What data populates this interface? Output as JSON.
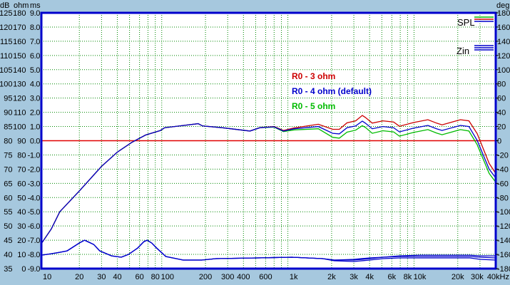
{
  "chart_data": {
    "type": "line",
    "xscale": "log",
    "xlim": [
      10,
      40000
    ],
    "xlabel_unit": "kHz",
    "x_ticks": [
      "10",
      "20",
      "30",
      "40",
      "60",
      "80",
      "100",
      "200",
      "300",
      "400",
      "600",
      "1k",
      "2k",
      "3k",
      "4k",
      "6k",
      "8k",
      "10k",
      "20k",
      "30k",
      "40kHz"
    ],
    "x_tick_values": [
      10,
      20,
      30,
      40,
      60,
      80,
      100,
      200,
      300,
      400,
      600,
      1000,
      2000,
      3000,
      4000,
      6000,
      8000,
      10000,
      20000,
      30000,
      40000
    ],
    "grid": true,
    "y_axes": {
      "db": {
        "unit": "dB",
        "range": [
          35,
          125
        ],
        "ticks": [
          "125",
          "120",
          "115",
          "110",
          "105",
          "100",
          "95",
          "90",
          "85",
          "80",
          "75",
          "70",
          "65",
          "60",
          "55",
          "50",
          "45",
          "40",
          "35"
        ]
      },
      "ohm": {
        "unit": "ohm",
        "range": [
          0,
          180
        ],
        "ticks": [
          "180",
          "170",
          "160",
          "150",
          "140",
          "130",
          "120",
          "110",
          "100",
          "90",
          "80",
          "70",
          "60",
          "50",
          "40",
          "30",
          "20",
          "10",
          "0"
        ]
      },
      "ms": {
        "unit": "ms",
        "range": [
          -9,
          9
        ],
        "ticks": [
          "9.0",
          "8.0",
          "7.0",
          "6.0",
          "5.0",
          "4.0",
          "3.0",
          "2.0",
          "1.0",
          "0.0",
          "-1.0",
          "-2.0",
          "-3.0",
          "-4.0",
          "-5.0",
          "-6.0",
          "-7.0",
          "-8.0",
          "-9.0"
        ]
      },
      "deg": {
        "unit": "deg",
        "range": [
          -180,
          180
        ],
        "ticks": [
          "180",
          "160",
          "140",
          "120",
          "100",
          "80",
          "60",
          "40",
          "20",
          "0",
          "-20",
          "-40",
          "-60",
          "-80",
          "-100",
          "-120",
          "-140",
          "-160",
          "-180"
        ]
      }
    },
    "reference_line": {
      "axis": "dB",
      "value": 80,
      "color": "#e00000"
    },
    "legend": {
      "placement": "top-right",
      "entries": [
        "SPL",
        "Zin"
      ]
    },
    "annotations": [
      {
        "text": "R0 - 3 ohm",
        "color": "#cc0000"
      },
      {
        "text": "R0 - 4 ohm (default)",
        "color": "#0000cc"
      },
      {
        "text": "R0 - 5 ohm",
        "color": "#00bb00"
      }
    ],
    "spl_x": [
      10,
      12,
      14,
      20,
      30,
      40,
      52,
      67,
      88,
      95,
      135,
      175,
      190,
      270,
      450,
      540,
      700,
      830,
      1010,
      1570,
      2040,
      2300,
      2650,
      3100,
      3500,
      3700,
      4200,
      5100,
      6200,
      6900,
      8900,
      11600,
      13600,
      15000,
      21000,
      24500,
      28500,
      35500,
      40000
    ],
    "series": [
      {
        "name": "R0 - 3 ohm",
        "kind": "SPL",
        "color": "#cc0000",
        "values": [
          43.8,
          49,
          55,
          62.3,
          71,
          76,
          79.4,
          82,
          83.6,
          84.6,
          85.4,
          86,
          85.2,
          84.6,
          83.4,
          84.6,
          85,
          83.6,
          84.5,
          85.8,
          84,
          84,
          86.3,
          87,
          88.9,
          88.2,
          86.2,
          87,
          86.6,
          85.1,
          86.4,
          87.4,
          86.2,
          85.6,
          87.4,
          87,
          82.5,
          72,
          68.5
        ]
      },
      {
        "name": "R0 - 4 ohm (default)",
        "kind": "SPL",
        "color": "#0000cc",
        "values": [
          43.8,
          49,
          55,
          62.3,
          71,
          76,
          79.4,
          82,
          83.6,
          84.6,
          85.4,
          86,
          85.2,
          84.6,
          83.4,
          84.6,
          84.9,
          83.4,
          84.2,
          85,
          82.6,
          82.4,
          84.6,
          85.2,
          86.9,
          86.2,
          84.2,
          85,
          84.6,
          83.1,
          84.4,
          85.4,
          84.2,
          83.6,
          85.4,
          85,
          80.1,
          70,
          66.9
        ]
      },
      {
        "name": "R0 - 5 ohm",
        "kind": "SPL",
        "color": "#00bb00",
        "values": [
          43.8,
          49,
          55,
          62.3,
          71,
          76,
          79.4,
          82,
          83.6,
          84.6,
          85.4,
          86,
          85.2,
          84.6,
          83.4,
          84.6,
          84.8,
          83.2,
          83.8,
          84.2,
          81.2,
          80.9,
          83,
          83.7,
          85.3,
          84.7,
          82.6,
          83.5,
          83.1,
          81.6,
          82.9,
          83.9,
          82.7,
          82.1,
          83.9,
          83.4,
          78.6,
          68.5,
          65.4
        ]
      }
    ],
    "zin_x": [
      10,
      12,
      14,
      16,
      20,
      22,
      26,
      29,
      36,
      43,
      49,
      58,
      65,
      69,
      75,
      82,
      97,
      133,
      187,
      242,
      510,
      970,
      1700,
      2100,
      3000,
      4000,
      5100,
      6900,
      10000,
      25000,
      30000,
      40000
    ],
    "zin_series": [
      {
        "kind": "Zin",
        "color": "#0000cc",
        "values": [
          9.5,
          10.5,
          11.5,
          12.5,
          18,
          20,
          17,
          12.5,
          9,
          8,
          10,
          14.5,
          19,
          20,
          18,
          14.5,
          8.5,
          6,
          6,
          7,
          7.5,
          8,
          7,
          6,
          6,
          7,
          8,
          9,
          9.5,
          9.5,
          9,
          9
        ]
      },
      {
        "kind": "Zin",
        "color": "#0000cc",
        "values": [
          9.5,
          10.5,
          11.5,
          12.5,
          18,
          20,
          17,
          12.5,
          9,
          8,
          10,
          14.5,
          19,
          20,
          18,
          14.5,
          8.5,
          6,
          6,
          7,
          7.5,
          8,
          7,
          6,
          6.5,
          7.5,
          8,
          8.5,
          8.5,
          8.5,
          8,
          7.5
        ]
      },
      {
        "kind": "Zin",
        "color": "#0000cc",
        "values": [
          9.5,
          10.5,
          11.5,
          12.5,
          18,
          20,
          17,
          12.5,
          9,
          8,
          10,
          14.5,
          19,
          20,
          18,
          14.5,
          8.5,
          6,
          6,
          7,
          7.5,
          8,
          7,
          5.5,
          5,
          6,
          7,
          7.5,
          7.5,
          7.5,
          6.5,
          6
        ]
      }
    ]
  }
}
